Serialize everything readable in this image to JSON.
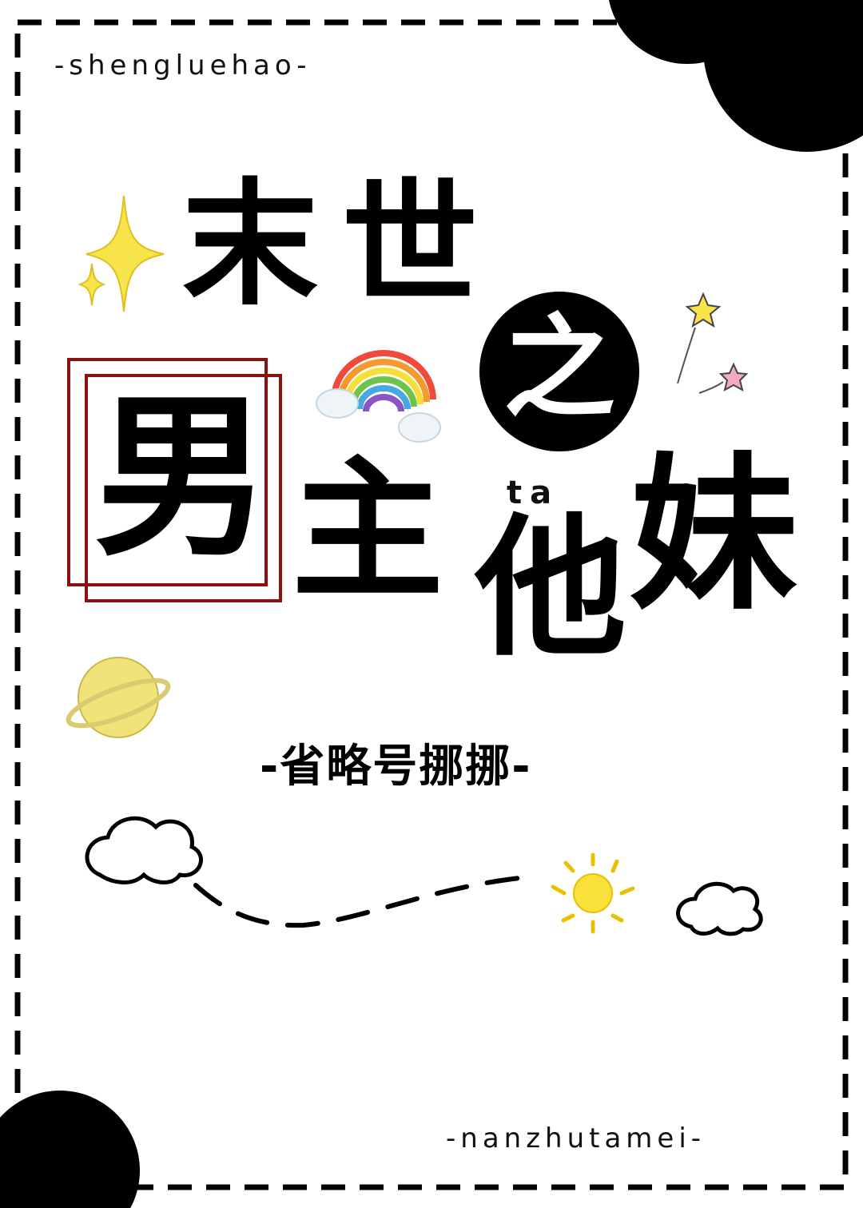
{
  "cover": {
    "top_tag": "-shengluehao-",
    "bottom_tag": "-nanzhutamei-",
    "title_chars": [
      "末",
      "世",
      "之",
      "男",
      "主",
      "他",
      "妹"
    ],
    "ruby": "ta",
    "author": "-省略号挪挪-"
  },
  "colors": {
    "ink": "#000000",
    "frame_red": "#8b1010",
    "star_yellow": "#f7e34a",
    "sun_yellow": "#f9e03b",
    "planet_yellow": "#f2e27a",
    "pink_star": "#f2a9c2"
  },
  "icons": [
    "sparkle-icon",
    "rainbow-icon",
    "cloud-icon",
    "planet-icon",
    "sun-icon",
    "star-wand-icon"
  ]
}
